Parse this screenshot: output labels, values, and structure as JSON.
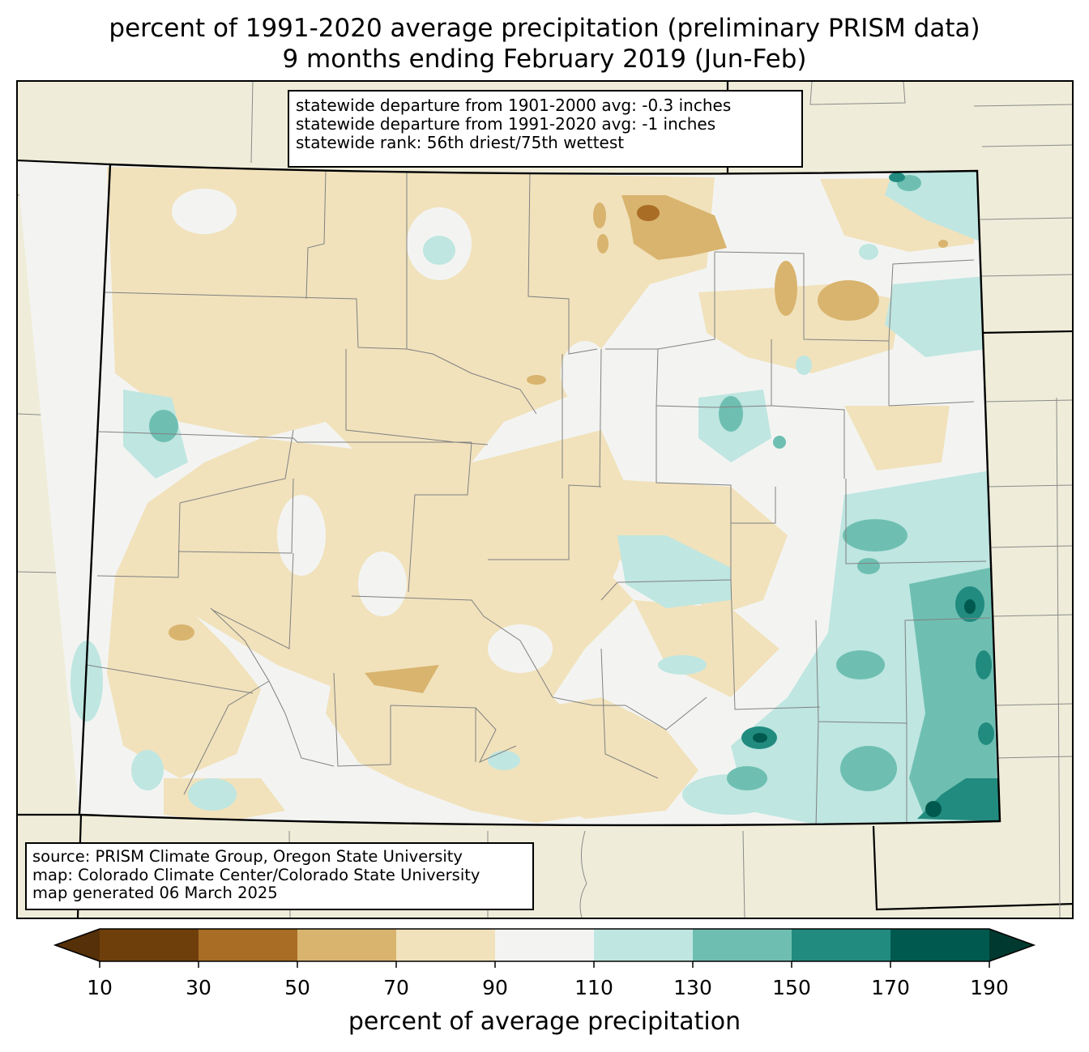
{
  "title": {
    "line1": "percent of 1991-2020 average precipitation (preliminary PRISM data)",
    "line2": "9 months ending February 2019 (Jun-Feb)"
  },
  "stats": {
    "line1": "statewide departure from 1901-2000 avg: -0.3 inches",
    "line2": "statewide departure from 1991-2020 avg: -1 inches",
    "line3": "statewide rank: 56th driest/75th wettest"
  },
  "source": {
    "line1": "source: PRISM Climate Group, Oregon State University",
    "line2": "map: Colorado Climate Center/Colorado State University",
    "line3": "map generated 06 March 2025"
  },
  "colorbar": {
    "label": "percent of average precipitation",
    "ticks": [
      "10",
      "30",
      "50",
      "70",
      "90",
      "110",
      "130",
      "150",
      "170",
      "190"
    ],
    "colors": [
      "#6e3f0b",
      "#a96d25",
      "#d9b46e",
      "#f1e2bc",
      "#f3f4f2",
      "#bfe6e1",
      "#6ebfb2",
      "#228b80",
      "#00594e"
    ],
    "under_color": "#553008",
    "over_color": "#00392f"
  }
}
